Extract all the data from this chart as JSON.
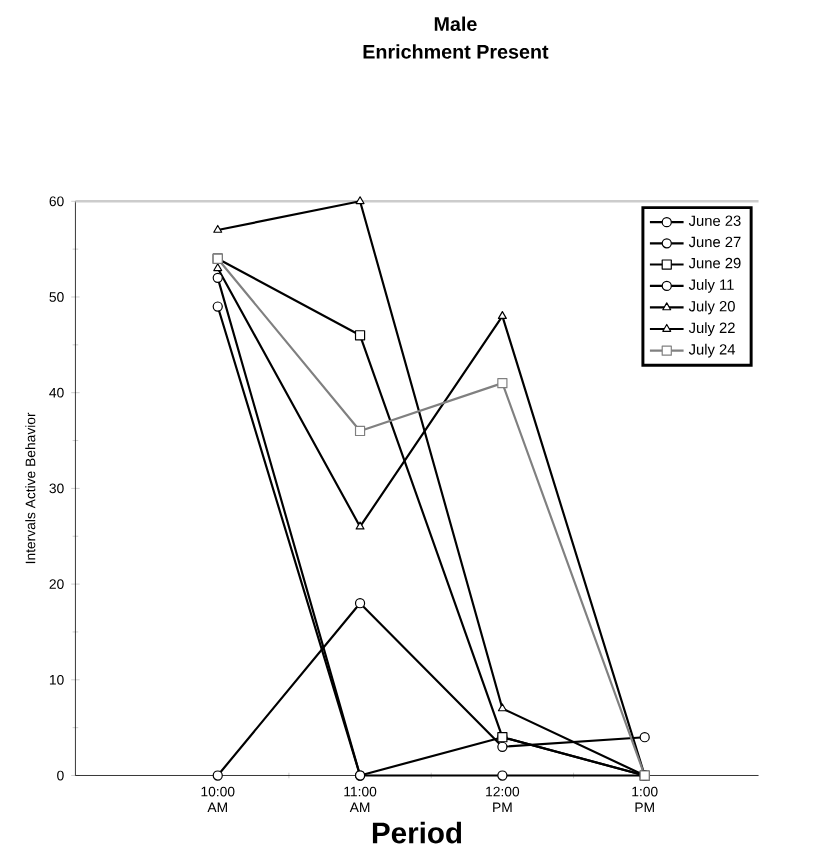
{
  "chart_data": {
    "type": "line",
    "title": "Male",
    "subtitle": "Enrichment Present",
    "xlabel": "Period",
    "ylabel": "Intervals Active Behavior",
    "x": [
      10,
      11,
      12,
      13
    ],
    "xlim": [
      9,
      13.8
    ],
    "xticks": [
      {
        "value": 10,
        "label": "10:00 AM"
      },
      {
        "value": 11,
        "label": "11:00 AM"
      },
      {
        "value": 12,
        "label": "12:00 PM"
      },
      {
        "value": 13,
        "label": "1:00 PM"
      }
    ],
    "ylim": [
      0,
      60
    ],
    "yticks": [
      0,
      10,
      20,
      30,
      40,
      50,
      60
    ],
    "grid": false,
    "legend": "top right",
    "series": [
      {
        "name": "June 23",
        "color": "#000000",
        "marker": "circle",
        "values": [
          0,
          18,
          3,
          4
        ]
      },
      {
        "name": "June 27",
        "color": "#000000",
        "marker": "circle",
        "values": [
          49,
          0,
          4,
          0
        ]
      },
      {
        "name": "June 29",
        "color": "#000000",
        "marker": "square",
        "values": [
          54,
          46,
          4,
          0
        ]
      },
      {
        "name": "July 11",
        "color": "#000000",
        "marker": "circle",
        "values": [
          52,
          0,
          0,
          0
        ]
      },
      {
        "name": "July 20",
        "color": "#000000",
        "marker": "triangle",
        "values": [
          57,
          60,
          7,
          0
        ]
      },
      {
        "name": "July 22",
        "color": "#000000",
        "marker": "triangle",
        "values": [
          53,
          26,
          48,
          0
        ]
      },
      {
        "name": "July 24",
        "color": "#808080",
        "marker": "square",
        "values": [
          54,
          36,
          41,
          0
        ]
      }
    ]
  }
}
